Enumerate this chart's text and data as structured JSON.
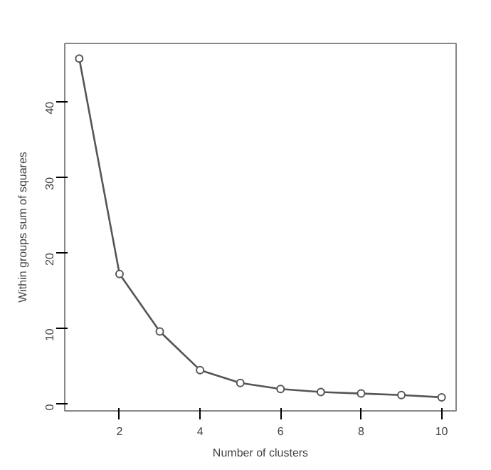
{
  "chart_data": {
    "type": "line",
    "xlabel": "Number of clusters",
    "ylabel": "Within groups sum of squares",
    "x": [
      1,
      2,
      3,
      4,
      5,
      6,
      7,
      8,
      9,
      10
    ],
    "series": [
      {
        "color": "#555555",
        "values": [
          45.7,
          17.2,
          9.6,
          4.5,
          2.8,
          2.0,
          1.6,
          1.4,
          1.2,
          0.9
        ]
      }
    ],
    "xlim": [
      0.64,
      10.36
    ],
    "ylim": [
      -0.9,
      47.7
    ],
    "xticks": [
      2,
      4,
      6,
      8,
      10
    ],
    "yticks": [
      0,
      10,
      20,
      30,
      40
    ],
    "marker": "circle",
    "line_style": "solid",
    "grid": false
  }
}
